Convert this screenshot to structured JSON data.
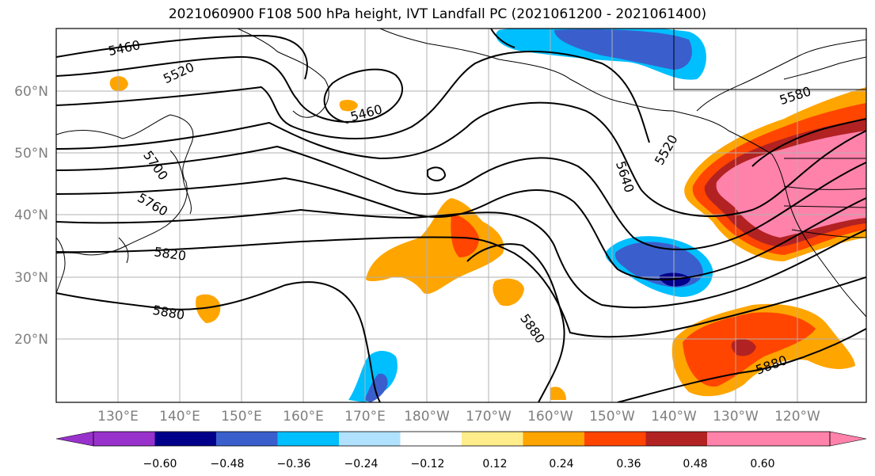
{
  "title": "2021060900 F108 500 hPa height, IVT Landfall PC (2021061200 - 2021061400)",
  "map": {
    "lon_ticks": [
      "130°E",
      "140°E",
      "150°E",
      "160°E",
      "170°E",
      "180°W",
      "170°W",
      "160°W",
      "150°W",
      "140°W",
      "130°W",
      "120°W"
    ],
    "lat_ticks": [
      "60°N",
      "50°N",
      "40°N",
      "30°N",
      "20°N"
    ],
    "contour_labels": [
      "5460",
      "5520",
      "5460",
      "5700",
      "5760",
      "5820",
      "5880",
      "5580",
      "5520",
      "5640",
      "5880",
      "5880"
    ]
  },
  "colorbar": {
    "ticks": [
      "−0.60",
      "−0.48",
      "−0.36",
      "−0.24",
      "−0.12",
      "0.12",
      "0.24",
      "0.36",
      "0.48",
      "0.60"
    ],
    "colors": [
      "#9932cc",
      "#00008b",
      "#3a5fcd",
      "#00bfff",
      "#b0e2ff",
      "#ffffff",
      "#ffec8b",
      "#ffa500",
      "#ff4500",
      "#b22222",
      "#ff82ab",
      "#ff82ab"
    ]
  }
}
